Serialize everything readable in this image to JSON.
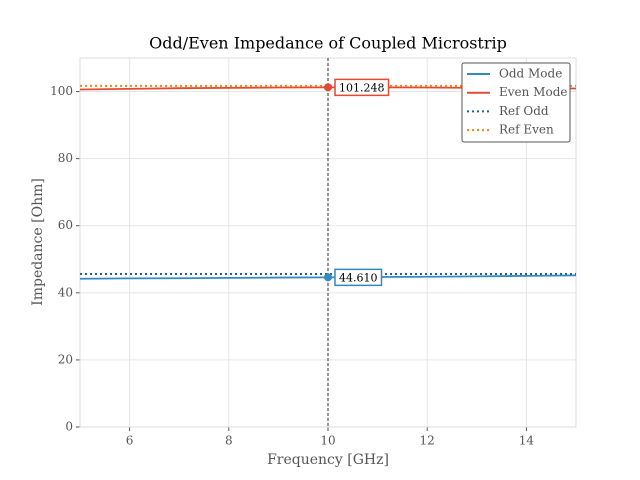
{
  "chart_data": {
    "type": "line",
    "title": "Odd/Even Impedance of Coupled Microstrip",
    "xlabel": "Frequency [GHz]",
    "ylabel": "Impedance [Ohm]",
    "x": [
      5,
      6,
      7,
      8,
      9,
      10,
      11,
      12,
      13,
      14,
      15
    ],
    "series": [
      {
        "name": "Odd Mode",
        "color": "#348abd",
        "style": "solid",
        "values": [
          44.2,
          44.3,
          44.35,
          44.45,
          44.55,
          44.61,
          44.7,
          44.8,
          44.9,
          45.05,
          45.2
        ]
      },
      {
        "name": "Even Mode",
        "color": "#e24a33",
        "style": "solid",
        "values": [
          100.6,
          100.8,
          101.0,
          101.1,
          101.2,
          101.248,
          101.25,
          101.2,
          101.1,
          101.0,
          100.9
        ]
      },
      {
        "name": "Ref Odd",
        "color": "#1f5fa8",
        "style": "dotted",
        "values": [
          45.6,
          45.6,
          45.6,
          45.6,
          45.6,
          45.6,
          45.6,
          45.6,
          45.6,
          45.6,
          45.6
        ]
      },
      {
        "name": "Ref Even",
        "color": "#ff7f0e",
        "style": "dotted",
        "values": [
          101.7,
          101.7,
          101.7,
          101.7,
          101.7,
          101.7,
          101.7,
          101.7,
          101.7,
          101.7,
          101.7
        ]
      }
    ],
    "vline": 10,
    "annotations": [
      {
        "series": 1,
        "x": 10,
        "value": 101.248,
        "label": "101.248"
      },
      {
        "series": 0,
        "x": 10,
        "value": 44.61,
        "label": "44.610"
      }
    ],
    "xlim": [
      5,
      15
    ],
    "xticks": [
      6,
      8,
      10,
      12,
      14
    ],
    "ylim": [
      0,
      110
    ],
    "yticks": [
      0,
      20,
      40,
      60,
      80,
      100
    ],
    "grid": true,
    "legend": "upper right"
  }
}
